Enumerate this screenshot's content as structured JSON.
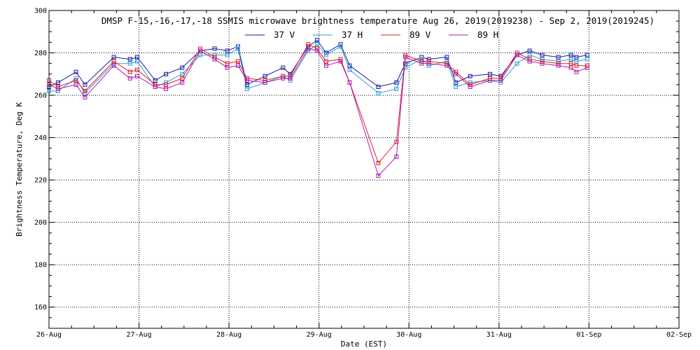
{
  "chart_data": {
    "type": "line",
    "title": "DMSP F-15,-16,-17,-18 SSMIS microwave brightness temperature Aug 26, 2019(2019238) - Sep  2, 2019(2019245)",
    "xlabel": "Date (EST)",
    "ylabel": "Brightness Temperature, Deg K",
    "xlim": [
      "2019-08-26T00:00",
      "2019-09-02T00:00"
    ],
    "ylim": [
      150,
      300
    ],
    "x_ticks": [
      "26-Aug",
      "27-Aug",
      "28-Aug",
      "29-Aug",
      "30-Aug",
      "31-Aug",
      "01-Sep",
      "02-Sep"
    ],
    "y_ticks": [
      160,
      180,
      200,
      220,
      240,
      260,
      280,
      300
    ],
    "grid": true,
    "legend_position": "top-center",
    "series": [
      {
        "name": "37 V",
        "color": "#1a1aa8",
        "x": [
          "2019-08-26T00:00",
          "2019-08-26T02:24",
          "2019-08-26T07:12",
          "2019-08-26T09:36",
          "2019-08-26T17:17",
          "2019-08-26T21:36",
          "2019-08-26T23:31",
          "2019-08-27T04:19",
          "2019-08-27T07:12",
          "2019-08-27T11:31",
          "2019-08-27T16:19",
          "2019-08-27T20:10",
          "2019-08-27T23:31",
          "2019-08-28T02:24",
          "2019-08-28T04:48",
          "2019-08-28T09:36",
          "2019-08-28T14:24",
          "2019-08-28T16:19",
          "2019-08-28T21:07",
          "2019-08-28T23:31",
          "2019-08-29T01:55",
          "2019-08-29T05:46",
          "2019-08-29T08:10",
          "2019-08-29T15:50",
          "2019-08-29T20:38",
          "2019-08-29T23:02",
          "2019-08-30T03:22",
          "2019-08-30T05:17",
          "2019-08-30T10:05",
          "2019-08-30T12:29",
          "2019-08-30T16:19",
          "2019-08-30T21:36",
          "2019-08-31T00:29",
          "2019-08-31T04:48",
          "2019-08-31T08:10",
          "2019-08-31T11:31",
          "2019-08-31T15:50",
          "2019-08-31T19:12",
          "2019-08-31T20:38",
          "2019-08-31T23:31"
        ],
        "values": [
          264,
          266,
          271,
          265,
          278,
          277,
          278,
          267,
          270,
          273,
          281,
          282,
          281,
          283,
          265,
          269,
          273,
          270,
          283,
          286,
          280,
          284,
          274,
          264,
          266,
          275,
          278,
          277,
          278,
          266,
          269,
          270,
          269,
          279,
          281,
          279,
          278,
          279,
          278,
          279
        ]
      },
      {
        "name": "37 H",
        "color": "#2aa0d0",
        "x": [
          "2019-08-26T00:00",
          "2019-08-26T02:24",
          "2019-08-26T07:12",
          "2019-08-26T09:36",
          "2019-08-26T17:17",
          "2019-08-26T21:36",
          "2019-08-26T23:31",
          "2019-08-27T04:19",
          "2019-08-27T07:12",
          "2019-08-27T11:31",
          "2019-08-27T16:19",
          "2019-08-27T20:10",
          "2019-08-27T23:31",
          "2019-08-28T02:24",
          "2019-08-28T04:48",
          "2019-08-28T09:36",
          "2019-08-28T14:24",
          "2019-08-28T16:19",
          "2019-08-28T21:07",
          "2019-08-28T23:31",
          "2019-08-29T01:55",
          "2019-08-29T05:46",
          "2019-08-29T08:10",
          "2019-08-29T15:50",
          "2019-08-29T20:38",
          "2019-08-29T23:02",
          "2019-08-30T03:22",
          "2019-08-30T05:17",
          "2019-08-30T10:05",
          "2019-08-30T12:29",
          "2019-08-30T16:19",
          "2019-08-30T21:36",
          "2019-08-31T00:29",
          "2019-08-31T04:48",
          "2019-08-31T08:10",
          "2019-08-31T11:31",
          "2019-08-31T15:50",
          "2019-08-31T19:12",
          "2019-08-31T20:38",
          "2019-08-31T23:31"
        ],
        "values": [
          262,
          262,
          268,
          261,
          275,
          275,
          276,
          264,
          266,
          270,
          279,
          279,
          279,
          282,
          263,
          266,
          269,
          267,
          281,
          284,
          279,
          283,
          272,
          261,
          263,
          273,
          277,
          274,
          276,
          264,
          266,
          267,
          266,
          275,
          279,
          277,
          276,
          277,
          276,
          277
        ]
      },
      {
        "name": "89 V",
        "color": "#dc2020",
        "x": [
          "2019-08-26T00:00",
          "2019-08-26T02:24",
          "2019-08-26T07:12",
          "2019-08-26T09:36",
          "2019-08-26T17:17",
          "2019-08-26T21:36",
          "2019-08-26T23:31",
          "2019-08-27T04:19",
          "2019-08-27T07:12",
          "2019-08-27T11:31",
          "2019-08-27T16:19",
          "2019-08-27T20:10",
          "2019-08-27T23:31",
          "2019-08-28T02:24",
          "2019-08-28T04:48",
          "2019-08-28T09:36",
          "2019-08-28T14:24",
          "2019-08-28T16:19",
          "2019-08-28T21:07",
          "2019-08-28T23:31",
          "2019-08-29T01:55",
          "2019-08-29T05:46",
          "2019-08-29T08:10",
          "2019-08-29T15:50",
          "2019-08-29T20:38",
          "2019-08-29T23:02",
          "2019-08-30T03:22",
          "2019-08-30T05:17",
          "2019-08-30T10:05",
          "2019-08-30T12:29",
          "2019-08-30T16:19",
          "2019-08-30T21:36",
          "2019-08-31T00:29",
          "2019-08-31T04:48",
          "2019-08-31T08:10",
          "2019-08-31T11:31",
          "2019-08-31T15:50",
          "2019-08-31T19:12",
          "2019-08-31T20:38",
          "2019-08-31T23:31"
        ],
        "values": [
          267,
          264,
          267,
          262,
          276,
          271,
          272,
          265,
          265,
          268,
          282,
          278,
          275,
          276,
          268,
          267,
          269,
          269,
          284,
          282,
          276,
          277,
          266,
          228,
          238,
          279,
          276,
          276,
          275,
          271,
          265,
          268,
          268,
          280,
          277,
          276,
          275,
          275,
          274,
          274
        ]
      },
      {
        "name": "89 H",
        "color": "#b01ab0",
        "x": [
          "2019-08-26T00:00",
          "2019-08-26T02:24",
          "2019-08-26T07:12",
          "2019-08-26T09:36",
          "2019-08-26T17:17",
          "2019-08-26T21:36",
          "2019-08-26T23:31",
          "2019-08-27T04:19",
          "2019-08-27T07:12",
          "2019-08-27T11:31",
          "2019-08-27T16:19",
          "2019-08-27T20:10",
          "2019-08-27T23:31",
          "2019-08-28T02:24",
          "2019-08-28T04:48",
          "2019-08-28T09:36",
          "2019-08-28T14:24",
          "2019-08-28T16:19",
          "2019-08-28T21:07",
          "2019-08-28T23:31",
          "2019-08-29T01:55",
          "2019-08-29T05:46",
          "2019-08-29T08:10",
          "2019-08-29T15:50",
          "2019-08-29T20:38",
          "2019-08-29T23:02",
          "2019-08-30T03:22",
          "2019-08-30T05:17",
          "2019-08-30T10:05",
          "2019-08-30T12:29",
          "2019-08-30T16:19",
          "2019-08-30T21:36",
          "2019-08-31T00:29",
          "2019-08-31T04:48",
          "2019-08-31T08:10",
          "2019-08-31T11:31",
          "2019-08-31T15:50",
          "2019-08-31T19:12",
          "2019-08-31T20:38",
          "2019-08-31T23:31"
        ],
        "values": [
          265,
          263,
          265,
          259,
          274,
          268,
          269,
          264,
          263,
          266,
          281,
          277,
          273,
          274,
          267,
          266,
          268,
          268,
          282,
          281,
          274,
          276,
          266,
          222,
          231,
          278,
          275,
          275,
          274,
          270,
          264,
          267,
          267,
          279,
          276,
          275,
          274,
          273,
          271,
          273
        ]
      }
    ]
  }
}
